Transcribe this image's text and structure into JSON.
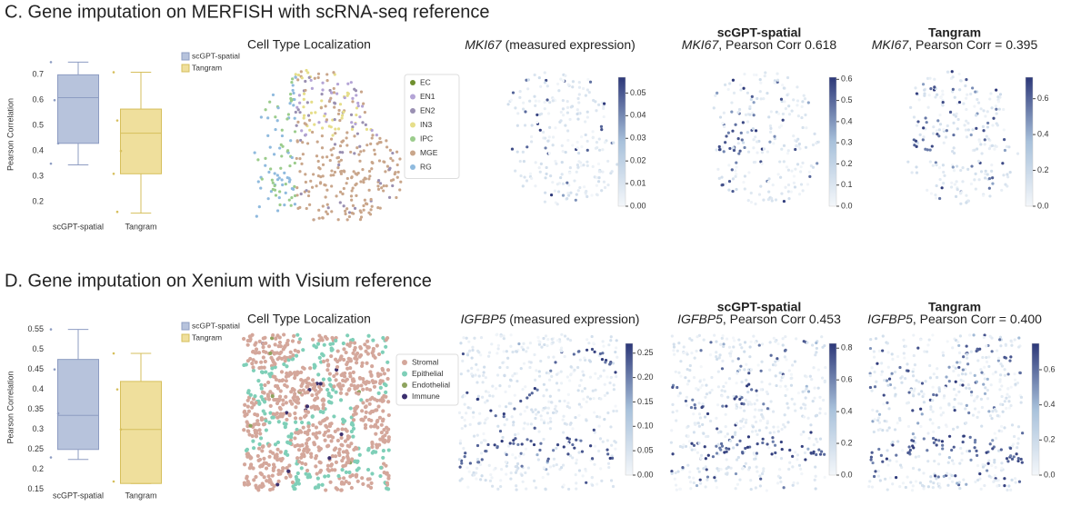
{
  "panels": [
    {
      "title": "C. Gene imputation on MERFISH with scRNA-seq reference",
      "chart_data": {
        "type": "box",
        "ylabel": "Pearson Correlation",
        "categories": [
          "scGPT-spatial",
          "Tangram"
        ],
        "series": [
          {
            "name": "scGPT-spatial",
            "color": "#b7c3dc",
            "edge": "#8d9cc2",
            "stats": {
              "whislo": 0.345,
              "q1": 0.43,
              "median": 0.61,
              "q3": 0.7,
              "whishi": 0.75
            },
            "points": [
              0.75,
              0.6,
              0.43,
              0.35
            ]
          },
          {
            "name": "Tangram",
            "color": "#efdf9c",
            "edge": "#d6bf5c",
            "stats": {
              "whislo": 0.155,
              "q1": 0.31,
              "median": 0.47,
              "q3": 0.565,
              "whishi": 0.71
            },
            "points": [
              0.71,
              0.52,
              0.4,
              0.31,
              0.16
            ]
          }
        ],
        "ylim": [
          0.15,
          0.78
        ],
        "yticks": [
          0.2,
          0.3,
          0.4,
          0.5,
          0.6,
          0.7
        ]
      },
      "cell_type": {
        "title": "Cell Type Localization",
        "legend": [
          {
            "name": "EC",
            "color": "#6f8f2e"
          },
          {
            "name": "EN1",
            "color": "#b4a4d6"
          },
          {
            "name": "EN2",
            "color": "#9a90b2"
          },
          {
            "name": "IN3",
            "color": "#e6de8a"
          },
          {
            "name": "IPC",
            "color": "#9bcc8c"
          },
          {
            "name": "MGE",
            "color": "#c9a68b"
          },
          {
            "name": "RG",
            "color": "#8fbade"
          }
        ]
      },
      "maps": [
        {
          "gene": "MKI67",
          "caption": " (measured expression)",
          "colorbar": {
            "lim": [
              0,
              0.057
            ],
            "ticks": [
              {
                "value": 0,
                "label": "0.00"
              },
              {
                "value": 0.01,
                "label": "0.01"
              },
              {
                "value": 0.02,
                "label": "0.02"
              },
              {
                "value": 0.03,
                "label": "0.03"
              },
              {
                "value": 0.04,
                "label": "0.04"
              },
              {
                "value": 0.05,
                "label": "0.05"
              }
            ]
          }
        },
        {
          "method": "scGPT-spatial",
          "gene": "MKI67",
          "caption": ", Pearson Corr 0.618",
          "colorbar": {
            "lim": [
              0,
              0.61
            ],
            "ticks": [
              {
                "value": 0,
                "label": "0.0"
              },
              {
                "value": 0.1,
                "label": "0.1"
              },
              {
                "value": 0.2,
                "label": "0.2"
              },
              {
                "value": 0.3,
                "label": "0.3"
              },
              {
                "value": 0.4,
                "label": "0.4"
              },
              {
                "value": 0.5,
                "label": "0.5"
              },
              {
                "value": 0.6,
                "label": "0.6"
              }
            ]
          }
        },
        {
          "method": "Tangram",
          "gene": "MKI67",
          "caption": ", Pearson Corr = 0.395",
          "colorbar": {
            "lim": [
              0,
              0.72
            ],
            "ticks": [
              {
                "value": 0,
                "label": "0.0"
              },
              {
                "value": 0.2,
                "label": "0.2"
              },
              {
                "value": 0.4,
                "label": "0.4"
              },
              {
                "value": 0.6,
                "label": "0.6"
              }
            ]
          }
        }
      ]
    },
    {
      "title": "D. Gene imputation on Xenium with Visium reference",
      "chart_data": {
        "type": "box",
        "ylabel": "Pearson Correlation",
        "categories": [
          "scGPT-spatial",
          "Tangram"
        ],
        "series": [
          {
            "name": "scGPT-spatial",
            "color": "#b7c3dc",
            "edge": "#8d9cc2",
            "stats": {
              "whislo": 0.225,
              "q1": 0.25,
              "median": 0.335,
              "q3": 0.475,
              "whishi": 0.55
            },
            "points": [
              0.55,
              0.45,
              0.34,
              0.23
            ]
          },
          {
            "name": "Tangram",
            "color": "#efdf9c",
            "edge": "#d6bf5c",
            "stats": {
              "whislo": 0.165,
              "q1": 0.165,
              "median": 0.3,
              "q3": 0.42,
              "whishi": 0.49
            },
            "points": [
              0.49,
              0.4,
              0.3,
              0.17
            ]
          }
        ],
        "ylim": [
          0.145,
          0.565
        ],
        "yticks": [
          0.15,
          0.2,
          0.25,
          0.3,
          0.35,
          0.4,
          0.45,
          0.5,
          0.55
        ]
      },
      "cell_type": {
        "title": "Cell Type Localization",
        "legend": [
          {
            "name": "Stromal",
            "color": "#d4a79b"
          },
          {
            "name": "Epithelial",
            "color": "#7fcfb8"
          },
          {
            "name": "Endothelial",
            "color": "#8ea35e"
          },
          {
            "name": "Immune",
            "color": "#3b2f6e"
          }
        ]
      },
      "maps": [
        {
          "gene": "IGFBP5",
          "caption": " (measured expression)",
          "colorbar": {
            "lim": [
              0,
              0.27
            ],
            "ticks": [
              {
                "value": 0,
                "label": "0.00"
              },
              {
                "value": 0.05,
                "label": "0.05"
              },
              {
                "value": 0.1,
                "label": "0.10"
              },
              {
                "value": 0.15,
                "label": "0.15"
              },
              {
                "value": 0.2,
                "label": "0.20"
              },
              {
                "value": 0.25,
                "label": "0.25"
              }
            ]
          }
        },
        {
          "method": "scGPT-spatial",
          "gene": "IGFBP5",
          "caption": ", Pearson Corr 0.453",
          "colorbar": {
            "lim": [
              0,
              0.83
            ],
            "ticks": [
              {
                "value": 0,
                "label": "0.0"
              },
              {
                "value": 0.2,
                "label": "0.2"
              },
              {
                "value": 0.4,
                "label": "0.4"
              },
              {
                "value": 0.6,
                "label": "0.6"
              },
              {
                "value": 0.8,
                "label": "0.8"
              }
            ]
          }
        },
        {
          "method": "Tangram",
          "gene": "IGFBP5",
          "caption": ", Pearson Corr = 0.400",
          "colorbar": {
            "lim": [
              0,
              0.75
            ],
            "ticks": [
              {
                "value": 0,
                "label": "0.0"
              },
              {
                "value": 0.2,
                "label": "0.2"
              },
              {
                "value": 0.4,
                "label": "0.4"
              },
              {
                "value": 0.6,
                "label": "0.6"
              }
            ]
          }
        }
      ]
    }
  ]
}
